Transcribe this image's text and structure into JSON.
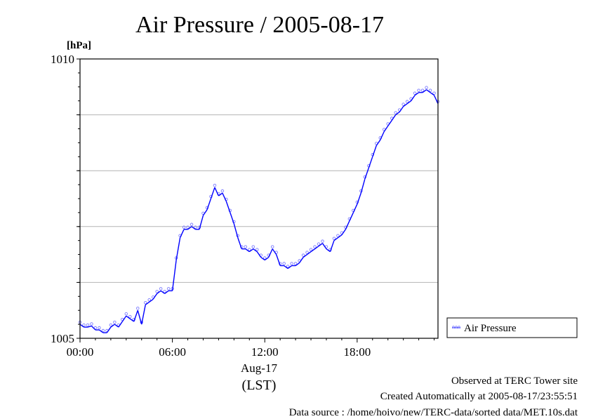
{
  "chart_data": {
    "type": "line",
    "title": "Air Pressure / 2005-08-17",
    "yunit": "[hPa]",
    "ylim": [
      1005,
      1010
    ],
    "y_ticks": [
      1005,
      1006,
      1007,
      1008,
      1009,
      1010
    ],
    "y_tick_labels": [
      "1005",
      "1010"
    ],
    "xlim": [
      0,
      23.25
    ],
    "x_ticks": [
      0,
      6,
      12,
      18
    ],
    "x_tick_labels": [
      "00:00",
      "06:00",
      "12:00",
      "18:00"
    ],
    "xlabel_date": "Aug-17",
    "xlabel_tz": "(LST)",
    "grid": true,
    "legend_position": "right",
    "series": [
      {
        "name": "Air Pressure",
        "color": "#0000ff",
        "x": [
          0,
          0.25,
          0.5,
          0.75,
          1.0,
          1.25,
          1.5,
          1.75,
          2.0,
          2.25,
          2.5,
          2.75,
          3.0,
          3.25,
          3.5,
          3.75,
          4.0,
          4.25,
          4.5,
          4.75,
          5.0,
          5.25,
          5.5,
          5.75,
          6.0,
          6.25,
          6.5,
          6.75,
          7.0,
          7.25,
          7.5,
          7.75,
          8.0,
          8.25,
          8.5,
          8.75,
          9.0,
          9.25,
          9.5,
          9.75,
          10.0,
          10.25,
          10.5,
          10.75,
          11.0,
          11.25,
          11.5,
          11.75,
          12.0,
          12.25,
          12.5,
          12.75,
          13.0,
          13.25,
          13.5,
          13.75,
          14.0,
          14.25,
          14.5,
          14.75,
          15.0,
          15.25,
          15.5,
          15.75,
          16.0,
          16.25,
          16.5,
          16.75,
          17.0,
          17.25,
          17.5,
          17.75,
          18.0,
          18.25,
          18.5,
          18.75,
          19.0,
          19.25,
          19.5,
          19.75,
          20.0,
          20.25,
          20.5,
          20.75,
          21.0,
          21.25,
          21.5,
          21.75,
          22.0,
          22.25,
          22.5,
          22.75,
          23.0,
          23.25
        ],
        "values": [
          1005.25,
          1005.2,
          1005.2,
          1005.22,
          1005.15,
          1005.15,
          1005.1,
          1005.1,
          1005.2,
          1005.25,
          1005.2,
          1005.3,
          1005.4,
          1005.35,
          1005.3,
          1005.5,
          1005.25,
          1005.6,
          1005.65,
          1005.7,
          1005.8,
          1005.85,
          1005.8,
          1005.85,
          1005.85,
          1006.4,
          1006.8,
          1006.95,
          1006.95,
          1007.0,
          1006.95,
          1006.95,
          1007.2,
          1007.3,
          1007.5,
          1007.7,
          1007.55,
          1007.6,
          1007.45,
          1007.25,
          1007.05,
          1006.8,
          1006.6,
          1006.6,
          1006.55,
          1006.6,
          1006.55,
          1006.45,
          1006.4,
          1006.45,
          1006.6,
          1006.5,
          1006.3,
          1006.3,
          1006.25,
          1006.3,
          1006.3,
          1006.35,
          1006.45,
          1006.5,
          1006.55,
          1006.6,
          1006.65,
          1006.7,
          1006.6,
          1006.55,
          1006.75,
          1006.8,
          1006.85,
          1006.95,
          1007.1,
          1007.25,
          1007.4,
          1007.6,
          1007.85,
          1008.05,
          1008.25,
          1008.45,
          1008.55,
          1008.7,
          1008.8,
          1008.9,
          1009.0,
          1009.05,
          1009.15,
          1009.2,
          1009.25,
          1009.35,
          1009.4,
          1009.4,
          1009.45,
          1009.4,
          1009.35,
          1009.2
        ]
      }
    ]
  },
  "footer": {
    "line1": "Observed at TERC Tower site",
    "line2": "Created Automatically at 2005-08-17/23:55:51",
    "line3": "Data source : /home/hoivo/new/TERC-data/sorted  data/MET.10s.dat"
  }
}
